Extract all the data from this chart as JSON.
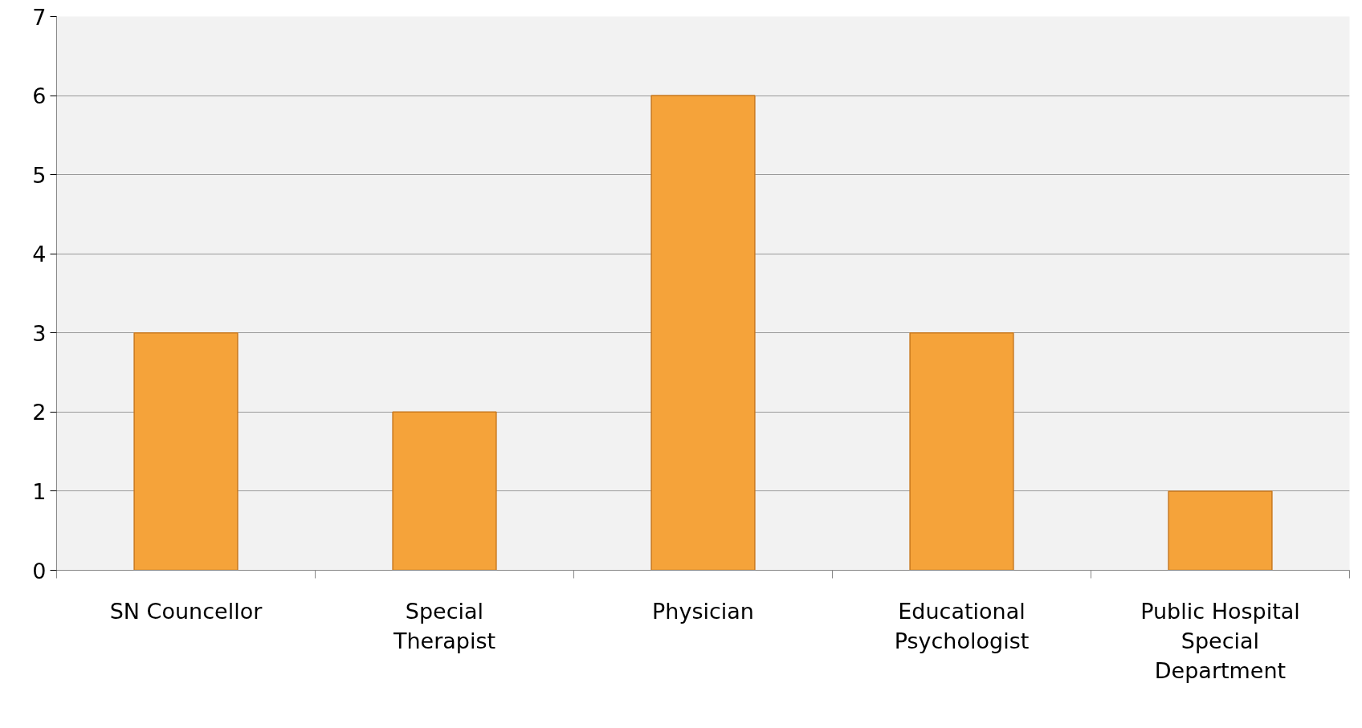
{
  "chart_data": {
    "type": "bar",
    "categories": [
      "SN Councellor",
      "Special Therapist",
      "Physician",
      "Educational Psychologist",
      "Public Hospital Special Department"
    ],
    "values": [
      3,
      2,
      6,
      3,
      1
    ],
    "color": "#f5a33a",
    "ylim": [
      0,
      7
    ],
    "yticks": [
      0,
      1,
      2,
      3,
      4,
      5,
      6,
      7
    ],
    "grid": "y"
  }
}
